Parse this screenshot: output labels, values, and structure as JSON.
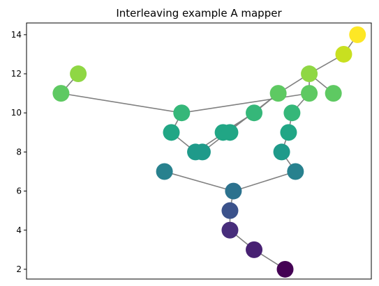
{
  "chart_data": {
    "type": "scatter",
    "title": "Interleaving example A mapper",
    "xlabel": "",
    "ylabel": "",
    "x_ticks_visible": false,
    "ylim": [
      1.5,
      14.6
    ],
    "xlim": [
      0,
      1
    ],
    "yticks": [
      "2",
      "4",
      "6",
      "8",
      "10",
      "12",
      "14"
    ],
    "colormap": "viridis",
    "edge_color": "#808080",
    "nodes": [
      {
        "id": "a",
        "x": 0.15,
        "y": 12.0,
        "color": "#8fd744"
      },
      {
        "id": "b",
        "x": 0.1,
        "y": 11.0,
        "color": "#5ec962"
      },
      {
        "id": "c",
        "x": 0.45,
        "y": 10.0,
        "color": "#35b779"
      },
      {
        "id": "d",
        "x": 0.42,
        "y": 9.0,
        "color": "#21a685"
      },
      {
        "id": "e",
        "x": 0.49,
        "y": 8.0,
        "color": "#1f9a8a"
      },
      {
        "id": "e2",
        "x": 0.51,
        "y": 8.0,
        "color": "#1f9a8a"
      },
      {
        "id": "f",
        "x": 0.4,
        "y": 7.0,
        "color": "#28818e"
      },
      {
        "id": "g",
        "x": 0.57,
        "y": 9.0,
        "color": "#21a685"
      },
      {
        "id": "g2",
        "x": 0.59,
        "y": 9.0,
        "color": "#21a685"
      },
      {
        "id": "h",
        "x": 0.66,
        "y": 10.0,
        "color": "#35b779"
      },
      {
        "id": "i",
        "x": 0.73,
        "y": 11.0,
        "color": "#5ec962"
      },
      {
        "id": "j",
        "x": 0.82,
        "y": 12.0,
        "color": "#8fd744"
      },
      {
        "id": "k",
        "x": 0.82,
        "y": 11.0,
        "color": "#5ec962"
      },
      {
        "id": "l",
        "x": 0.89,
        "y": 11.0,
        "color": "#5ec962"
      },
      {
        "id": "m",
        "x": 0.92,
        "y": 13.0,
        "color": "#c8e020"
      },
      {
        "id": "n",
        "x": 0.96,
        "y": 14.0,
        "color": "#fde725"
      },
      {
        "id": "o",
        "x": 0.77,
        "y": 10.0,
        "color": "#35b779"
      },
      {
        "id": "p",
        "x": 0.76,
        "y": 9.0,
        "color": "#21a685"
      },
      {
        "id": "q",
        "x": 0.74,
        "y": 8.0,
        "color": "#1f9a8a"
      },
      {
        "id": "r",
        "x": 0.78,
        "y": 7.0,
        "color": "#28818e"
      },
      {
        "id": "s",
        "x": 0.6,
        "y": 6.0,
        "color": "#2c728e"
      },
      {
        "id": "t",
        "x": 0.59,
        "y": 5.0,
        "color": "#3b528b"
      },
      {
        "id": "u",
        "x": 0.59,
        "y": 4.0,
        "color": "#472d7b"
      },
      {
        "id": "v",
        "x": 0.66,
        "y": 3.0,
        "color": "#482173"
      },
      {
        "id": "w",
        "x": 0.75,
        "y": 2.0,
        "color": "#440154"
      }
    ],
    "edges": [
      [
        "a",
        "b"
      ],
      [
        "b",
        "c"
      ],
      [
        "c",
        "k"
      ],
      [
        "c",
        "d"
      ],
      [
        "d",
        "e"
      ],
      [
        "e",
        "h"
      ],
      [
        "e2",
        "i"
      ],
      [
        "g",
        "h"
      ],
      [
        "h",
        "i"
      ],
      [
        "i",
        "j"
      ],
      [
        "j",
        "k"
      ],
      [
        "j",
        "l"
      ],
      [
        "j",
        "m"
      ],
      [
        "m",
        "n"
      ],
      [
        "k",
        "o"
      ],
      [
        "o",
        "p"
      ],
      [
        "p",
        "q"
      ],
      [
        "q",
        "r"
      ],
      [
        "f",
        "s"
      ],
      [
        "r",
        "s"
      ],
      [
        "s",
        "t"
      ],
      [
        "t",
        "u"
      ],
      [
        "u",
        "v"
      ],
      [
        "v",
        "w"
      ]
    ]
  }
}
